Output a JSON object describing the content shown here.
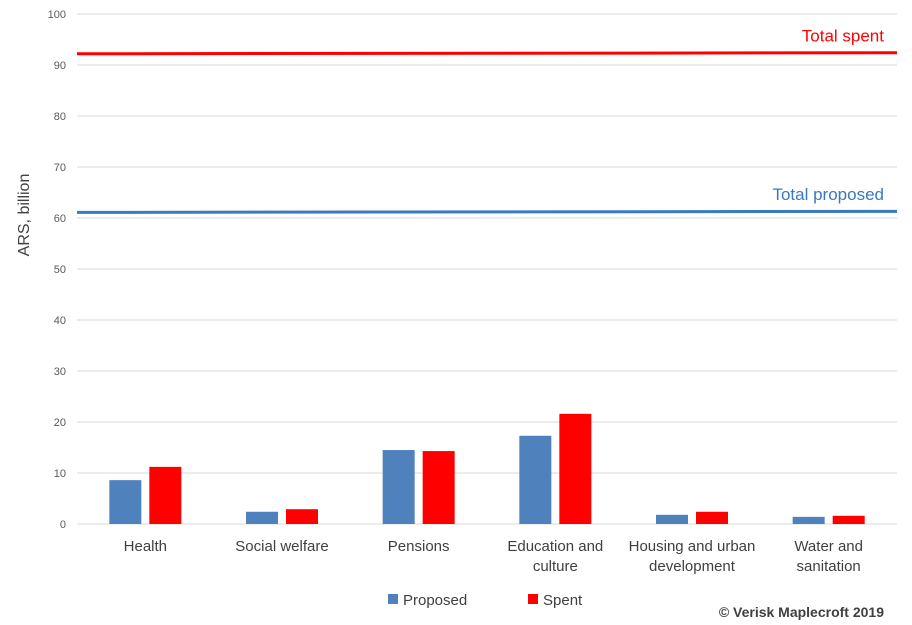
{
  "chart_data": {
    "type": "bar",
    "ylabel": "ARS, billion",
    "ylim": [
      0,
      100
    ],
    "yticks": [
      0,
      10,
      20,
      30,
      40,
      50,
      60,
      70,
      80,
      90,
      100
    ],
    "grid": true,
    "legend_position": "bottom",
    "categories": [
      [
        "Health"
      ],
      [
        "Social welfare"
      ],
      [
        "Pensions"
      ],
      [
        "Education and",
        "culture"
      ],
      [
        "Housing and urban",
        "development"
      ],
      [
        "Water and",
        "sanitation"
      ]
    ],
    "series": [
      {
        "name": "Proposed",
        "color": "#4f81bd",
        "values": [
          8.6,
          2.4,
          14.5,
          17.3,
          1.8,
          1.4
        ]
      },
      {
        "name": "Spent",
        "color": "#ff0000",
        "values": [
          11.2,
          2.9,
          14.3,
          21.6,
          2.4,
          1.6
        ]
      }
    ],
    "reference_lines": [
      {
        "label": "Total spent",
        "value": 92.3,
        "color": "#ff0000"
      },
      {
        "label": "Total proposed",
        "value": 61.2,
        "color": "#3a78c2"
      }
    ],
    "credit": "© Verisk Maplecroft 2019"
  }
}
